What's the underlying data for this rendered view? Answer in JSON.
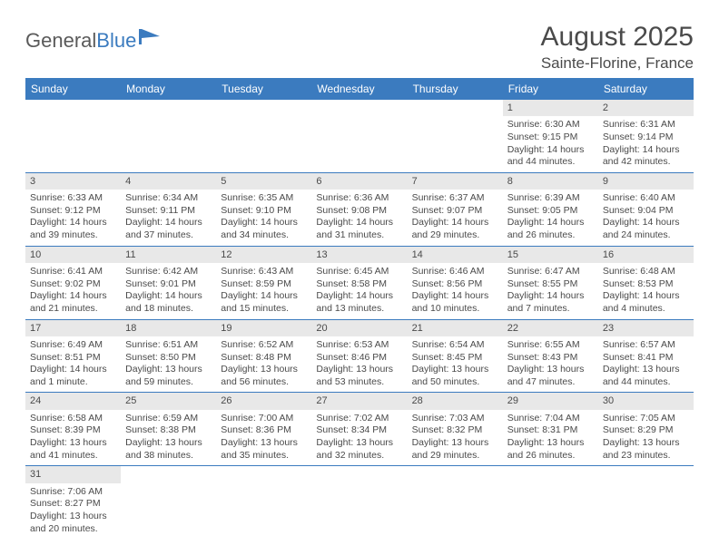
{
  "logo": {
    "text1": "General",
    "text2": "Blue"
  },
  "title": "August 2025",
  "location": "Sainte-Florine, France",
  "colors": {
    "header_bg": "#3b7bbf",
    "header_text": "#ffffff",
    "daynum_bg": "#e8e8e8",
    "text": "#4a4a4a",
    "rule": "#3b7bbf"
  },
  "dayNames": [
    "Sunday",
    "Monday",
    "Tuesday",
    "Wednesday",
    "Thursday",
    "Friday",
    "Saturday"
  ],
  "weeks": [
    [
      {
        "n": "",
        "sr": "",
        "ss": "",
        "dl": ""
      },
      {
        "n": "",
        "sr": "",
        "ss": "",
        "dl": ""
      },
      {
        "n": "",
        "sr": "",
        "ss": "",
        "dl": ""
      },
      {
        "n": "",
        "sr": "",
        "ss": "",
        "dl": ""
      },
      {
        "n": "",
        "sr": "",
        "ss": "",
        "dl": ""
      },
      {
        "n": "1",
        "sr": "Sunrise: 6:30 AM",
        "ss": "Sunset: 9:15 PM",
        "dl": "Daylight: 14 hours and 44 minutes."
      },
      {
        "n": "2",
        "sr": "Sunrise: 6:31 AM",
        "ss": "Sunset: 9:14 PM",
        "dl": "Daylight: 14 hours and 42 minutes."
      }
    ],
    [
      {
        "n": "3",
        "sr": "Sunrise: 6:33 AM",
        "ss": "Sunset: 9:12 PM",
        "dl": "Daylight: 14 hours and 39 minutes."
      },
      {
        "n": "4",
        "sr": "Sunrise: 6:34 AM",
        "ss": "Sunset: 9:11 PM",
        "dl": "Daylight: 14 hours and 37 minutes."
      },
      {
        "n": "5",
        "sr": "Sunrise: 6:35 AM",
        "ss": "Sunset: 9:10 PM",
        "dl": "Daylight: 14 hours and 34 minutes."
      },
      {
        "n": "6",
        "sr": "Sunrise: 6:36 AM",
        "ss": "Sunset: 9:08 PM",
        "dl": "Daylight: 14 hours and 31 minutes."
      },
      {
        "n": "7",
        "sr": "Sunrise: 6:37 AM",
        "ss": "Sunset: 9:07 PM",
        "dl": "Daylight: 14 hours and 29 minutes."
      },
      {
        "n": "8",
        "sr": "Sunrise: 6:39 AM",
        "ss": "Sunset: 9:05 PM",
        "dl": "Daylight: 14 hours and 26 minutes."
      },
      {
        "n": "9",
        "sr": "Sunrise: 6:40 AM",
        "ss": "Sunset: 9:04 PM",
        "dl": "Daylight: 14 hours and 24 minutes."
      }
    ],
    [
      {
        "n": "10",
        "sr": "Sunrise: 6:41 AM",
        "ss": "Sunset: 9:02 PM",
        "dl": "Daylight: 14 hours and 21 minutes."
      },
      {
        "n": "11",
        "sr": "Sunrise: 6:42 AM",
        "ss": "Sunset: 9:01 PM",
        "dl": "Daylight: 14 hours and 18 minutes."
      },
      {
        "n": "12",
        "sr": "Sunrise: 6:43 AM",
        "ss": "Sunset: 8:59 PM",
        "dl": "Daylight: 14 hours and 15 minutes."
      },
      {
        "n": "13",
        "sr": "Sunrise: 6:45 AM",
        "ss": "Sunset: 8:58 PM",
        "dl": "Daylight: 14 hours and 13 minutes."
      },
      {
        "n": "14",
        "sr": "Sunrise: 6:46 AM",
        "ss": "Sunset: 8:56 PM",
        "dl": "Daylight: 14 hours and 10 minutes."
      },
      {
        "n": "15",
        "sr": "Sunrise: 6:47 AM",
        "ss": "Sunset: 8:55 PM",
        "dl": "Daylight: 14 hours and 7 minutes."
      },
      {
        "n": "16",
        "sr": "Sunrise: 6:48 AM",
        "ss": "Sunset: 8:53 PM",
        "dl": "Daylight: 14 hours and 4 minutes."
      }
    ],
    [
      {
        "n": "17",
        "sr": "Sunrise: 6:49 AM",
        "ss": "Sunset: 8:51 PM",
        "dl": "Daylight: 14 hours and 1 minute."
      },
      {
        "n": "18",
        "sr": "Sunrise: 6:51 AM",
        "ss": "Sunset: 8:50 PM",
        "dl": "Daylight: 13 hours and 59 minutes."
      },
      {
        "n": "19",
        "sr": "Sunrise: 6:52 AM",
        "ss": "Sunset: 8:48 PM",
        "dl": "Daylight: 13 hours and 56 minutes."
      },
      {
        "n": "20",
        "sr": "Sunrise: 6:53 AM",
        "ss": "Sunset: 8:46 PM",
        "dl": "Daylight: 13 hours and 53 minutes."
      },
      {
        "n": "21",
        "sr": "Sunrise: 6:54 AM",
        "ss": "Sunset: 8:45 PM",
        "dl": "Daylight: 13 hours and 50 minutes."
      },
      {
        "n": "22",
        "sr": "Sunrise: 6:55 AM",
        "ss": "Sunset: 8:43 PM",
        "dl": "Daylight: 13 hours and 47 minutes."
      },
      {
        "n": "23",
        "sr": "Sunrise: 6:57 AM",
        "ss": "Sunset: 8:41 PM",
        "dl": "Daylight: 13 hours and 44 minutes."
      }
    ],
    [
      {
        "n": "24",
        "sr": "Sunrise: 6:58 AM",
        "ss": "Sunset: 8:39 PM",
        "dl": "Daylight: 13 hours and 41 minutes."
      },
      {
        "n": "25",
        "sr": "Sunrise: 6:59 AM",
        "ss": "Sunset: 8:38 PM",
        "dl": "Daylight: 13 hours and 38 minutes."
      },
      {
        "n": "26",
        "sr": "Sunrise: 7:00 AM",
        "ss": "Sunset: 8:36 PM",
        "dl": "Daylight: 13 hours and 35 minutes."
      },
      {
        "n": "27",
        "sr": "Sunrise: 7:02 AM",
        "ss": "Sunset: 8:34 PM",
        "dl": "Daylight: 13 hours and 32 minutes."
      },
      {
        "n": "28",
        "sr": "Sunrise: 7:03 AM",
        "ss": "Sunset: 8:32 PM",
        "dl": "Daylight: 13 hours and 29 minutes."
      },
      {
        "n": "29",
        "sr": "Sunrise: 7:04 AM",
        "ss": "Sunset: 8:31 PM",
        "dl": "Daylight: 13 hours and 26 minutes."
      },
      {
        "n": "30",
        "sr": "Sunrise: 7:05 AM",
        "ss": "Sunset: 8:29 PM",
        "dl": "Daylight: 13 hours and 23 minutes."
      }
    ],
    [
      {
        "n": "31",
        "sr": "Sunrise: 7:06 AM",
        "ss": "Sunset: 8:27 PM",
        "dl": "Daylight: 13 hours and 20 minutes."
      },
      {
        "n": "",
        "sr": "",
        "ss": "",
        "dl": ""
      },
      {
        "n": "",
        "sr": "",
        "ss": "",
        "dl": ""
      },
      {
        "n": "",
        "sr": "",
        "ss": "",
        "dl": ""
      },
      {
        "n": "",
        "sr": "",
        "ss": "",
        "dl": ""
      },
      {
        "n": "",
        "sr": "",
        "ss": "",
        "dl": ""
      },
      {
        "n": "",
        "sr": "",
        "ss": "",
        "dl": ""
      }
    ]
  ]
}
